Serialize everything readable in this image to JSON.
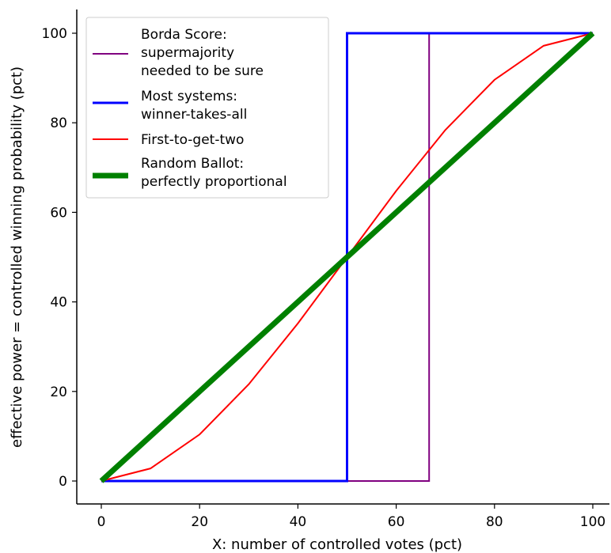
{
  "chart_data": {
    "type": "line",
    "title": "",
    "xlabel": "X: number of controlled votes (pct)",
    "ylabel": "effective power = controlled winning probability (pct)",
    "xlim": [
      -5,
      102.5
    ],
    "ylim": [
      -5,
      105
    ],
    "xticks": [
      "0",
      "20",
      "40",
      "60",
      "80",
      "100"
    ],
    "yticks": [
      "0",
      "20",
      "40",
      "60",
      "80",
      "100"
    ],
    "grid": false,
    "legend_position": "top-left",
    "series": [
      {
        "name": "Borda Score:\nsupermajority\nneeded to be sure",
        "color": "#800080",
        "style": "thin",
        "x": [
          0,
          66.7,
          66.7,
          100
        ],
        "y": [
          0,
          0,
          100,
          100
        ]
      },
      {
        "name": "Most systems:\nwinner-takes-all",
        "color": "#0000ff",
        "style": "medium",
        "x": [
          0,
          50,
          50,
          100
        ],
        "y": [
          0,
          0,
          100,
          100
        ]
      },
      {
        "name": "First-to-get-two",
        "color": "#ff0000",
        "style": "thin",
        "x": [
          0,
          10,
          20,
          30,
          40,
          50,
          60,
          70,
          80,
          90,
          100
        ],
        "y": [
          0,
          2.8,
          10.4,
          21.6,
          35.2,
          50,
          64.8,
          78.4,
          89.6,
          97.2,
          100
        ]
      },
      {
        "name": "Random Ballot:\nperfectly proportional",
        "color": "#008000",
        "style": "thick",
        "x": [
          0,
          100
        ],
        "y": [
          0,
          100
        ]
      }
    ]
  }
}
